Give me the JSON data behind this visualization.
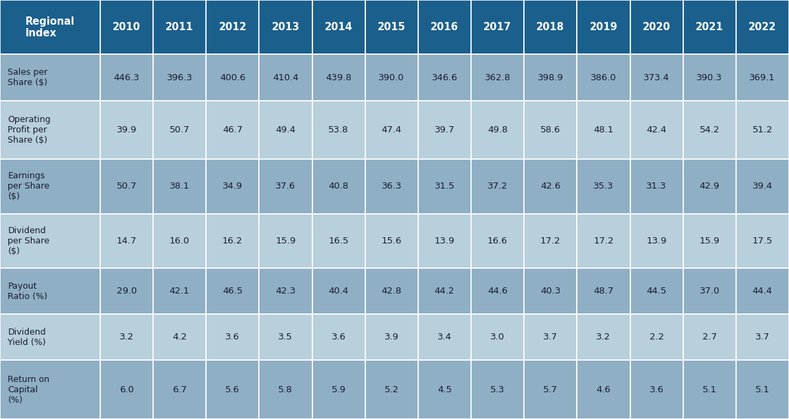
{
  "header_row": [
    "Regional\nIndex",
    "2010",
    "2011",
    "2012",
    "2013",
    "2014",
    "2015",
    "2016",
    "2017",
    "2018",
    "2019",
    "2020",
    "2021",
    "2022"
  ],
  "rows": [
    [
      "Sales per\nShare ($)",
      "446.3",
      "396.3",
      "400.6",
      "410.4",
      "439.8",
      "390.0",
      "346.6",
      "362.8",
      "398.9",
      "386.0",
      "373.4",
      "390.3",
      "369.1"
    ],
    [
      "Operating\nProfit per\nShare ($)",
      "39.9",
      "50.7",
      "46.7",
      "49.4",
      "53.8",
      "47.4",
      "39.7",
      "49.8",
      "58.6",
      "48.1",
      "42.4",
      "54.2",
      "51.2"
    ],
    [
      "Earnings\nper Share\n($)",
      "50.7",
      "38.1",
      "34.9",
      "37.6",
      "40.8",
      "36.3",
      "31.5",
      "37.2",
      "42.6",
      "35.3",
      "31.3",
      "42.9",
      "39.4"
    ],
    [
      "Dividend\nper Share\n($)",
      "14.7",
      "16.0",
      "16.2",
      "15.9",
      "16.5",
      "15.6",
      "13.9",
      "16.6",
      "17.2",
      "17.2",
      "13.9",
      "15.9",
      "17.5"
    ],
    [
      "Payout\nRatio (%)",
      "29.0",
      "42.1",
      "46.5",
      "42.3",
      "40.4",
      "42.8",
      "44.2",
      "44.6",
      "40.3",
      "48.7",
      "44.5",
      "37.0",
      "44.4"
    ],
    [
      "Dividend\nYield (%)",
      "3.2",
      "4.2",
      "3.6",
      "3.5",
      "3.6",
      "3.9",
      "3.4",
      "3.0",
      "3.7",
      "3.2",
      "2.2",
      "2.7",
      "3.7"
    ],
    [
      "Return on\nCapital\n(%)",
      "6.0",
      "6.7",
      "5.6",
      "5.8",
      "5.9",
      "5.2",
      "4.5",
      "5.3",
      "5.7",
      "4.6",
      "3.6",
      "5.1",
      "5.1"
    ]
  ],
  "header_bg": "#1B5F8C",
  "row_bg_dark": "#8FAFC4",
  "row_bg_light": "#B8CFDC",
  "header_text_color": "#ffffff",
  "cell_text_color": "#1a1a2e",
  "n_cols": 14,
  "n_data_rows": 7,
  "col_widths_raw": [
    1.55,
    0.82,
    0.82,
    0.82,
    0.82,
    0.82,
    0.82,
    0.82,
    0.82,
    0.82,
    0.82,
    0.82,
    0.82,
    0.82
  ],
  "row_heights_raw": [
    1.3,
    1.1,
    1.4,
    1.3,
    1.3,
    1.1,
    1.1,
    1.4
  ],
  "header_fontsize": 10.5,
  "year_fontsize": 10.5,
  "label_fontsize": 9.0,
  "data_fontsize": 9.5
}
